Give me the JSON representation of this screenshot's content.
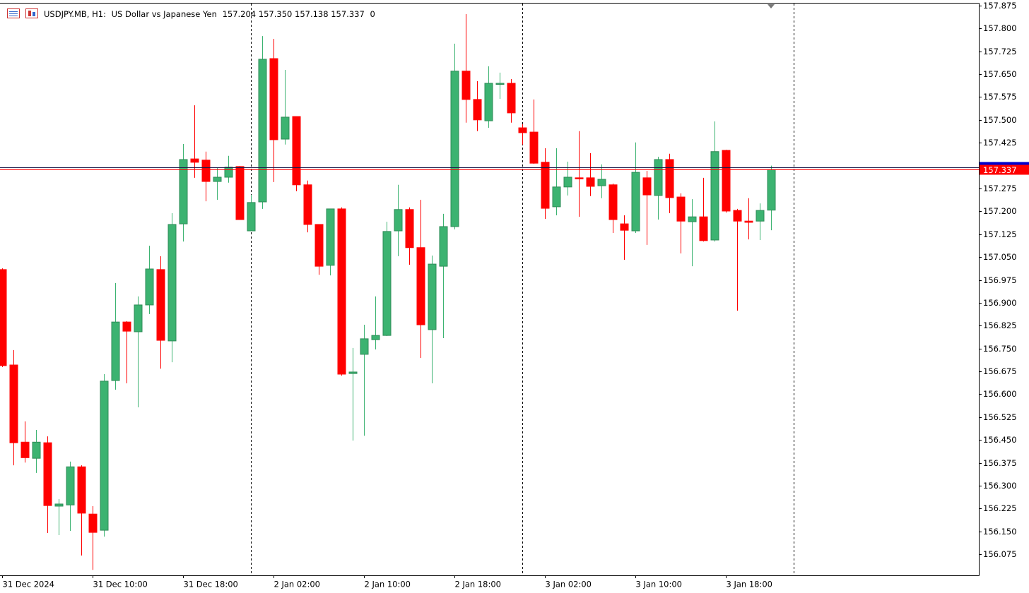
{
  "info": {
    "symbol": "USDJPY.MB, H1:",
    "description": "US Dollar vs Japanese Yen",
    "ohlc_text": [
      "157.204",
      "157.350",
      "157.138",
      "157.337"
    ],
    "spread": "0"
  },
  "chart_data": {
    "type": "candlestick",
    "categories": [
      "31 Dec 2024",
      null,
      null,
      null,
      null,
      null,
      null,
      null,
      "31 Dec 10:00",
      null,
      null,
      null,
      null,
      null,
      null,
      null,
      "31 Dec 18:00",
      null,
      null,
      null,
      null,
      null,
      null,
      null,
      "2 Jan 02:00",
      null,
      null,
      null,
      null,
      null,
      null,
      null,
      "2 Jan 10:00",
      null,
      null,
      null,
      null,
      null,
      null,
      null,
      "2 Jan 18:00",
      null,
      null,
      null,
      null,
      null,
      null,
      null,
      "3 Jan 02:00",
      null,
      null,
      null,
      null,
      null,
      null,
      null,
      "3 Jan 10:00",
      null,
      null,
      null,
      null,
      null,
      null,
      null,
      "3 Jan 18:00",
      null,
      null,
      null,
      null
    ],
    "open": [
      157.009,
      156.696,
      156.443,
      156.39,
      156.441,
      156.233,
      156.237,
      156.362,
      156.207,
      156.154,
      156.645,
      156.837,
      156.805,
      156.893,
      157.009,
      156.775,
      157.159,
      157.372,
      157.368,
      157.298,
      157.312,
      157.347,
      157.136,
      157.231,
      157.701,
      157.437,
      157.511,
      157.287,
      157.157,
      157.023,
      157.208,
      156.668,
      156.731,
      156.779,
      156.793,
      157.136,
      157.206,
      157.081,
      156.812,
      157.02,
      157.15,
      157.66,
      157.567,
      157.497,
      157.618,
      157.62,
      157.474,
      157.46,
      157.361,
      157.215,
      157.28,
      157.31,
      157.31,
      157.284,
      157.287,
      157.159,
      157.136,
      157.31,
      157.252,
      157.37,
      157.247,
      157.166,
      157.182,
      157.106,
      157.4,
      157.203,
      157.168,
      157.168,
      157.204
    ],
    "high": [
      157.013,
      156.745,
      156.511,
      156.483,
      156.462,
      156.256,
      156.379,
      156.367,
      156.233,
      156.666,
      156.965,
      156.84,
      156.921,
      157.087,
      157.053,
      157.194,
      157.421,
      157.548,
      157.396,
      157.342,
      157.382,
      157.349,
      157.254,
      157.775,
      157.766,
      157.664,
      157.511,
      157.301,
      157.157,
      157.208,
      157.213,
      156.752,
      156.828,
      156.921,
      157.166,
      157.287,
      157.213,
      157.238,
      157.055,
      157.192,
      157.75,
      157.847,
      157.627,
      157.676,
      157.655,
      157.634,
      157.486,
      157.567,
      157.407,
      157.407,
      157.363,
      157.463,
      157.391,
      157.354,
      157.291,
      157.187,
      157.426,
      157.333,
      157.379,
      157.389,
      157.259,
      157.24,
      157.31,
      157.495,
      157.402,
      157.208,
      157.243,
      157.226,
      157.35
    ],
    "low": [
      156.689,
      156.367,
      156.376,
      156.342,
      156.145,
      156.138,
      156.152,
      156.071,
      156.024,
      156.133,
      156.615,
      156.636,
      156.557,
      156.863,
      156.684,
      156.705,
      157.101,
      157.31,
      157.233,
      157.238,
      157.294,
      157.173,
      157.136,
      157.208,
      157.296,
      157.419,
      157.266,
      157.131,
      156.992,
      156.99,
      156.661,
      156.448,
      156.464,
      156.747,
      156.791,
      157.053,
      157.025,
      156.719,
      156.636,
      156.784,
      157.141,
      157.491,
      157.463,
      157.474,
      157.569,
      157.491,
      157.419,
      157.356,
      157.175,
      157.187,
      157.252,
      157.182,
      157.25,
      157.243,
      157.129,
      157.041,
      157.129,
      157.09,
      157.173,
      157.194,
      157.062,
      157.02,
      157.101,
      157.101,
      157.196,
      156.874,
      157.108,
      157.106,
      157.138
    ],
    "close": [
      156.694,
      156.441,
      156.392,
      156.443,
      156.235,
      156.24,
      156.362,
      156.21,
      156.147,
      156.643,
      156.837,
      156.807,
      156.893,
      157.011,
      156.777,
      157.157,
      157.37,
      157.361,
      157.298,
      157.312,
      157.345,
      157.173,
      157.229,
      157.699,
      157.435,
      157.509,
      157.287,
      157.157,
      157.02,
      157.208,
      156.666,
      156.673,
      156.782,
      156.793,
      157.134,
      157.206,
      157.081,
      156.828,
      157.027,
      157.15,
      157.66,
      157.567,
      157.5,
      157.62,
      157.62,
      157.523,
      157.458,
      157.358,
      157.21,
      157.28,
      157.312,
      157.307,
      157.282,
      157.305,
      157.173,
      157.138,
      157.328,
      157.254,
      157.37,
      157.245,
      157.168,
      157.182,
      157.104,
      157.396,
      157.201,
      157.168,
      157.164,
      157.203,
      157.337
    ],
    "ask": 157.345,
    "up_color": "#3cb371",
    "down_color": "#ff0000",
    "bid_color": "#ff0000",
    "ask_color": "#1a1a4a",
    "ylim": [
      156.006,
      157.884
    ],
    "yticks": [
      157.875,
      {
        "value": 157.8,
        "label": "157.800"
      },
      157.725,
      {
        "value": 157.65,
        "label": "157.650"
      },
      157.575,
      {
        "value": 157.5,
        "label": "157.500"
      },
      157.425,
      {
        "value": 157.35,
        "label": "157.350"
      },
      157.275,
      {
        "value": 157.2,
        "label": "157.200"
      },
      157.125,
      {
        "value": 157.05,
        "label": "157.050"
      },
      156.975,
      {
        "value": 156.9,
        "label": "156.900"
      },
      156.825,
      {
        "value": 156.75,
        "label": "156.750"
      },
      156.675,
      {
        "value": 156.6,
        "label": "156.600"
      },
      156.525,
      {
        "value": 156.45,
        "label": "156.450"
      },
      156.375,
      {
        "value": 156.3,
        "label": "156.300"
      },
      156.225,
      {
        "value": 156.15,
        "label": "156.150"
      },
      156.075
    ]
  }
}
